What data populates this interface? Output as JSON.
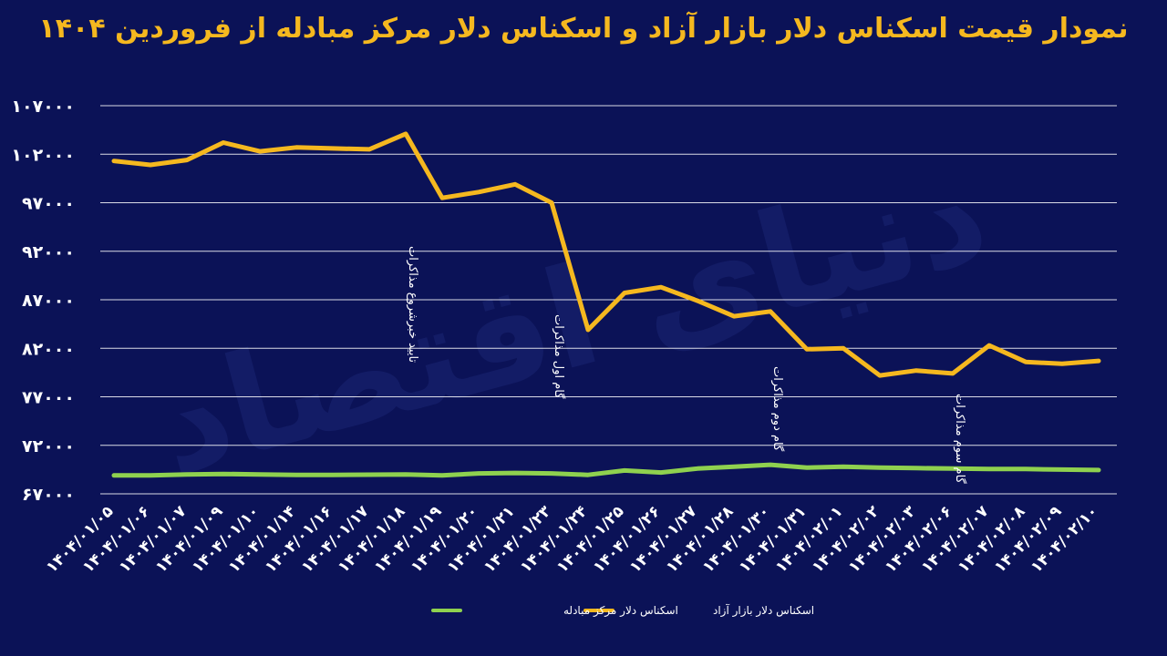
{
  "chart_data": {
    "type": "line",
    "title": "نمودار قیمت اسکناس دلار بازار آزاد و اسکناس دلار مرکز مبادله از فروردین ۱۴۰۴",
    "xlabel": "",
    "ylabel": "",
    "ylim": [
      67000,
      107000
    ],
    "yticks": [
      {
        "value": 107000,
        "label": "۱۰۷۰۰۰"
      },
      {
        "value": 102000,
        "label": "۱۰۲۰۰۰"
      },
      {
        "value": 97000,
        "label": "۹۷۰۰۰"
      },
      {
        "value": 92000,
        "label": "۹۲۰۰۰"
      },
      {
        "value": 87000,
        "label": "۸۷۰۰۰"
      },
      {
        "value": 82000,
        "label": "۸۲۰۰۰"
      },
      {
        "value": 77000,
        "label": "۷۷۰۰۰"
      },
      {
        "value": 72000,
        "label": "۷۲۰۰۰"
      },
      {
        "value": 67000,
        "label": "۶۷۰۰۰"
      }
    ],
    "grid": true,
    "legend_position": "bottom-center",
    "categories": [
      "۱۴۰۴/۰۱/۰۵",
      "۱۴۰۴/۰۱/۰۶",
      "۱۴۰۴/۰۱/۰۷",
      "۱۴۰۴/۰۱/۰۹",
      "۱۴۰۴/۰۱/۱۰",
      "۱۴۰۴/۰۱/۱۴",
      "۱۴۰۴/۰۱/۱۶",
      "۱۴۰۴/۰۱/۱۷",
      "۱۴۰۴/۰۱/۱۸",
      "۱۴۰۴/۰۱/۱۹",
      "۱۴۰۴/۰۱/۲۰",
      "۱۴۰۴/۰۱/۲۱",
      "۱۴۰۴/۰۱/۲۳",
      "۱۴۰۴/۰۱/۲۴",
      "۱۴۰۴/۰۱/۲۵",
      "۱۴۰۴/۰۱/۲۶",
      "۱۴۰۴/۰۱/۲۷",
      "۱۴۰۴/۰۱/۲۸",
      "۱۴۰۴/۰۱/۳۰",
      "۱۴۰۴/۰۱/۳۱",
      "۱۴۰۴/۰۲/۰۱",
      "۱۴۰۴/۰۲/۰۲",
      "۱۴۰۴/۰۲/۰۳",
      "۱۴۰۴/۰۲/۰۶",
      "۱۴۰۴/۰۲/۰۷",
      "۱۴۰۴/۰۲/۰۸",
      "۱۴۰۴/۰۲/۰۹",
      "۱۴۰۴/۰۲/۱۰"
    ],
    "series": [
      {
        "name": "اسکناس دلار مرکز مبادله",
        "color": "#8fd14f",
        "values": [
          68900,
          68900,
          69000,
          69050,
          69000,
          68950,
          68950,
          68970,
          69000,
          68900,
          69100,
          69150,
          69100,
          68950,
          69400,
          69200,
          69600,
          69800,
          70000,
          69700,
          69800,
          69700,
          69650,
          69600,
          69550,
          69550,
          69500,
          69450
        ]
      },
      {
        "name": "اسکناس دلار بازار آزاد",
        "color": "#f5b81f",
        "values": [
          101300,
          100900,
          101400,
          103200,
          102300,
          102700,
          102600,
          102500,
          104100,
          97500,
          98100,
          98900,
          97000,
          83900,
          87700,
          88300,
          86900,
          85300,
          85800,
          81900,
          82000,
          79200,
          79700,
          79400,
          82300,
          80600,
          80400,
          80700
        ]
      }
    ],
    "annotations": [
      {
        "category_index": 8,
        "text": "تایید خبرشروع مذاکرات"
      },
      {
        "category_index": 12,
        "text": "گام اول مذاکرات"
      },
      {
        "category_index": 18,
        "text": "گام دوم مذاکرات"
      },
      {
        "category_index": 23,
        "text": "گام سوم مذاکرات"
      }
    ]
  }
}
